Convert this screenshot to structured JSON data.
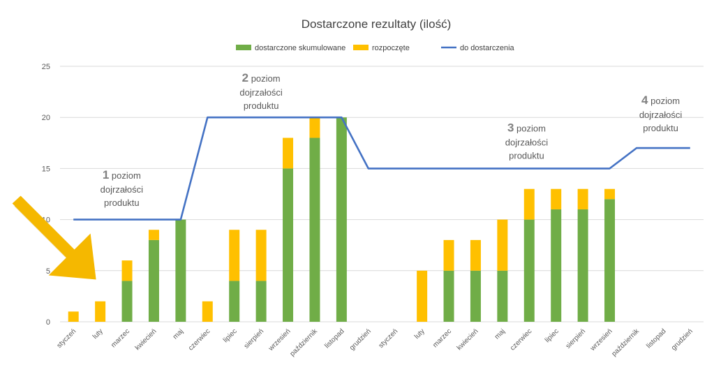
{
  "chart_data": {
    "type": "bar",
    "stacked": true,
    "title": "Dostarczone rezultaty (ilość)",
    "categories": [
      "styczeń",
      "luty",
      "marzec",
      "kwiecień",
      "maj",
      "czerwiec",
      "lipiec",
      "sierpień",
      "wrzesień",
      "październik",
      "listopad",
      "grudzień",
      "styczeń",
      "luty",
      "marzec",
      "kwiecień",
      "maj",
      "czerwiec",
      "lipiec",
      "sierpień",
      "wrzesień",
      "październik",
      "listopad",
      "grudzień"
    ],
    "ylim": [
      0,
      25
    ],
    "yticks": [
      0,
      5,
      10,
      15,
      20,
      25
    ],
    "grid": true,
    "legend_position": "top",
    "series": [
      {
        "name": "dostarczone skumulowane",
        "kind": "bar",
        "color": "#70AD47",
        "values": [
          0,
          0,
          4,
          8,
          10,
          0,
          4,
          4,
          15,
          18,
          20,
          0,
          0,
          0,
          5,
          5,
          5,
          10,
          11,
          11,
          12,
          0,
          0,
          0
        ]
      },
      {
        "name": "rozpoczęte",
        "kind": "bar",
        "color": "#FFC000",
        "values": [
          1,
          2,
          2,
          1,
          0,
          2,
          5,
          5,
          3,
          2,
          0,
          0,
          0,
          5,
          3,
          3,
          5,
          3,
          2,
          2,
          1,
          0,
          0,
          0
        ]
      },
      {
        "name": "do dostarczenia",
        "kind": "line",
        "color": "#4472C4",
        "values": [
          10,
          10,
          10,
          10,
          10,
          20,
          20,
          20,
          20,
          20,
          20,
          15,
          15,
          15,
          15,
          15,
          15,
          15,
          15,
          15,
          15,
          17,
          17,
          17
        ]
      }
    ],
    "annotations": [
      {
        "number": "1",
        "word": "poziom",
        "line2": "dojrzałości",
        "line3": "produktu",
        "near_index": 1.8,
        "near_value": 14
      },
      {
        "number": "2",
        "word": "poziom",
        "line2": "dojrzałości",
        "line3": "produktu",
        "near_index": 7,
        "near_value": 23.5
      },
      {
        "number": "3",
        "word": "poziom",
        "line2": "dojrzałości",
        "line3": "produktu",
        "near_index": 16.9,
        "near_value": 18.6
      },
      {
        "number": "4",
        "word": "poziom",
        "line2": "dojrzałości",
        "line3": "produktu",
        "near_index": 21.9,
        "near_value": 21.3
      }
    ],
    "callout": {
      "icon": "arrow-pointer",
      "color": "#F5B800",
      "target_index": 1,
      "target_value": 4
    }
  }
}
